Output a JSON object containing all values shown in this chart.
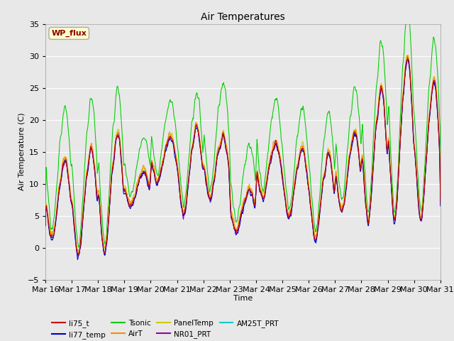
{
  "title": "Air Temperatures",
  "xlabel": "Time",
  "ylabel": "Air Temperature (C)",
  "ylim": [
    -5,
    35
  ],
  "annotation": "WP_flux",
  "annotation_color": "#8B0000",
  "annotation_bg": "#FFFFCC",
  "xtick_labels": [
    "Mar 16",
    "Mar 17",
    "Mar 18",
    "Mar 19",
    "Mar 20",
    "Mar 21",
    "Mar 22",
    "Mar 23",
    "Mar 24",
    "Mar 25",
    "Mar 26",
    "Mar 27",
    "Mar 28",
    "Mar 29",
    "Mar 30",
    "Mar 31"
  ],
  "series_colors": {
    "li75_t": "#CC0000",
    "li77_temp": "#0000CC",
    "Tsonic": "#00CC00",
    "AirT": "#FF8C00",
    "PanelTemp": "#CCCC00",
    "NR01_PRT": "#9900AA",
    "AM25T_PRT": "#00CCCC"
  },
  "background_color": "#E8E8E8",
  "grid_color": "#FFFFFF",
  "day_min": [
    1.0,
    -1.5,
    -1.0,
    6.5,
    10.0,
    5.0,
    7.5,
    2.5,
    7.5,
    4.5,
    1.0,
    5.5,
    4.0,
    4.0,
    4.0
  ],
  "day_max": [
    13.5,
    15.5,
    18.0,
    12.0,
    17.5,
    19.0,
    17.5,
    9.0,
    16.5,
    15.5,
    15.0,
    18.0,
    25.0,
    30.0,
    26.0
  ],
  "tsonic_offset": [
    7.0,
    6.5,
    5.5,
    4.0,
    4.0,
    3.5,
    7.0,
    6.0,
    5.5,
    5.0,
    5.0,
    5.5,
    6.0,
    5.5,
    5.0
  ]
}
